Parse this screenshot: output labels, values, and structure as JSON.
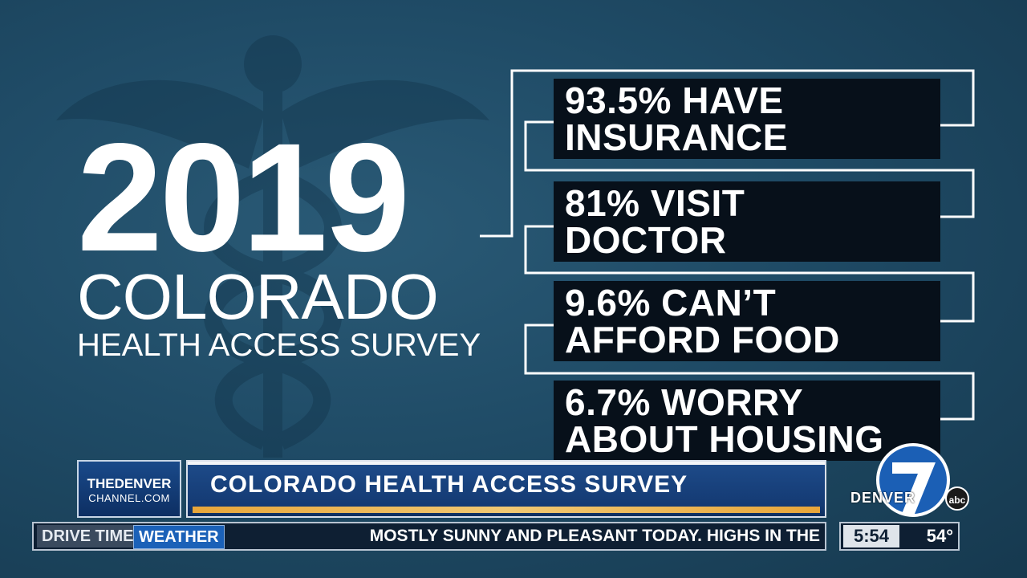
{
  "headline": {
    "year": "2019",
    "state": "COLORADO",
    "subtitle": "HEALTH ACCESS SURVEY"
  },
  "stats": [
    {
      "line1": "93.5% HAVE",
      "line2": "INSURANCE"
    },
    {
      "line1": "81% VISIT",
      "line2": "DOCTOR"
    },
    {
      "line1": "9.6% CAN’T",
      "line2": "AFFORD FOOD"
    },
    {
      "line1": "6.7% WORRY",
      "line2": "ABOUT HOUSING"
    }
  ],
  "lower_third": {
    "logo_line1": "THEDENVER",
    "logo_line2": "CHANNEL.COM",
    "title": "COLORADO HEALTH ACCESS SURVEY"
  },
  "ticker": {
    "tab_drive": "DRIVE TIMES",
    "tab_weather": "WEATHER",
    "text": "MOSTLY SUNNY AND PLEASANT TODAY.  HIGHS IN THE"
  },
  "clock": {
    "time": "5:54",
    "temp": "54°"
  },
  "station": {
    "name": "DENVER",
    "network": "abc"
  },
  "icons": {
    "background": "caduceus-icon",
    "station_logo": "channel-7-logo-icon"
  },
  "colors": {
    "background": "#1c4660",
    "stat_box": "#07101a",
    "accent": "#e8a63a",
    "lower_third": "#143a73"
  }
}
